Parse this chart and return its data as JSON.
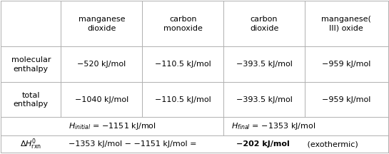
{
  "col_headers": [
    "manganese\ndioxide",
    "carbon\nmonoxide",
    "carbon\ndioxide",
    "manganese(\nIII) oxide"
  ],
  "row0": [
    "−520 kJ/mol",
    "−110.5 kJ/mol",
    "−393.5 kJ/mol",
    "−959 kJ/mol"
  ],
  "row1": [
    "−1040 kJ/mol",
    "−110.5 kJ/mol",
    "−393.5 kJ/mol",
    "−959 kJ/mol"
  ],
  "text_color": "#000000",
  "bg_color": "#ffffff",
  "grid_color": "#b0b0b0",
  "font_size": 8.0,
  "figsize": [
    5.45,
    2.16
  ],
  "dpi": 100
}
